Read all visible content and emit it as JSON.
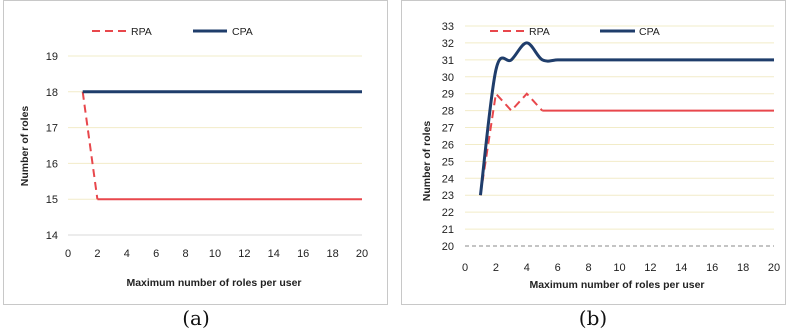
{
  "chart_data": [
    {
      "type": "line",
      "caption": "(a)",
      "xlabel": "Maximum number of roles per user",
      "ylabel": "Number of roles",
      "xlim": [
        0,
        20
      ],
      "ylim": [
        14,
        19
      ],
      "xticks": [
        0,
        2,
        4,
        6,
        8,
        10,
        12,
        14,
        16,
        18,
        20
      ],
      "yticks": [
        14,
        15,
        16,
        17,
        18,
        19
      ],
      "grid": true,
      "legend_placement": "top",
      "series": [
        {
          "name": "RPA",
          "color": "#e8474c",
          "dash": "dashed-then-solid",
          "x": [
            1,
            2,
            3,
            4,
            5,
            6,
            7,
            8,
            9,
            10,
            11,
            12,
            13,
            14,
            15,
            16,
            17,
            18,
            19,
            20
          ],
          "y": [
            18,
            15,
            15,
            15,
            15,
            15,
            15,
            15,
            15,
            15,
            15,
            15,
            15,
            15,
            15,
            15,
            15,
            15,
            15,
            15
          ]
        },
        {
          "name": "CPA",
          "color": "#1f3d6b",
          "dash": "solid",
          "x": [
            1,
            2,
            3,
            4,
            5,
            6,
            7,
            8,
            9,
            10,
            11,
            12,
            13,
            14,
            15,
            16,
            17,
            18,
            19,
            20
          ],
          "y": [
            18,
            18,
            18,
            18,
            18,
            18,
            18,
            18,
            18,
            18,
            18,
            18,
            18,
            18,
            18,
            18,
            18,
            18,
            18,
            18
          ]
        }
      ]
    },
    {
      "type": "line",
      "caption": "(b)",
      "xlabel": "Maximum number of roles per user",
      "ylabel": "Number of roles",
      "xlim": [
        0,
        20
      ],
      "ylim": [
        20,
        33
      ],
      "xticks": [
        0,
        2,
        4,
        6,
        8,
        10,
        12,
        14,
        16,
        18,
        20
      ],
      "yticks": [
        20,
        21,
        22,
        23,
        24,
        25,
        26,
        27,
        28,
        29,
        30,
        31,
        32,
        33
      ],
      "grid": true,
      "legend_placement": "top",
      "series": [
        {
          "name": "RPA",
          "color": "#e8474c",
          "dash": "dashed-then-solid",
          "x": [
            1,
            2,
            3,
            4,
            5,
            6,
            7,
            8,
            9,
            10,
            11,
            12,
            13,
            14,
            15,
            16,
            17,
            18,
            19,
            20
          ],
          "y": [
            23,
            29,
            28,
            29,
            28,
            28,
            28,
            28,
            28,
            28,
            28,
            28,
            28,
            28,
            28,
            28,
            28,
            28,
            28,
            28
          ]
        },
        {
          "name": "CPA",
          "color": "#1f3d6b",
          "dash": "solid",
          "x": [
            1,
            2,
            3,
            4,
            5,
            6,
            7,
            8,
            9,
            10,
            11,
            12,
            13,
            14,
            15,
            16,
            17,
            18,
            19,
            20
          ],
          "y": [
            23,
            30.4,
            31,
            32,
            31,
            31,
            31,
            31,
            31,
            31,
            31,
            31,
            31,
            31,
            31,
            31,
            31,
            31,
            31,
            31
          ]
        }
      ]
    }
  ]
}
